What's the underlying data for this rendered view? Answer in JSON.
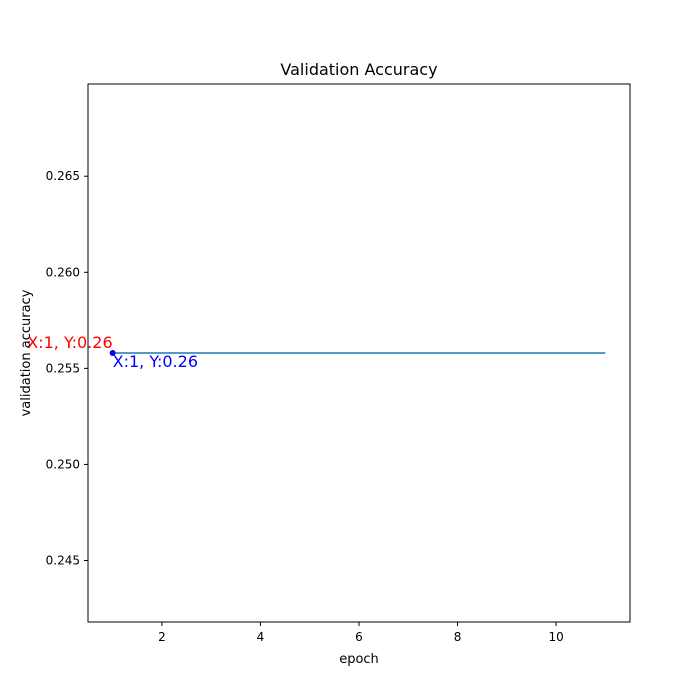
{
  "chart_data": {
    "type": "line",
    "title": "Validation Accuracy",
    "xlabel": "epoch",
    "ylabel": "validation accuracy",
    "xlim": [
      0.5,
      11.5
    ],
    "ylim": [
      0.2418,
      0.2698
    ],
    "xticks": [
      2,
      4,
      6,
      8,
      10
    ],
    "xtick_labels": [
      "2",
      "4",
      "6",
      "8",
      "10"
    ],
    "yticks": [
      0.245,
      0.25,
      0.255,
      0.26,
      0.265
    ],
    "ytick_labels": [
      "0.245",
      "0.250",
      "0.255",
      "0.260",
      "0.265"
    ],
    "grid": false,
    "series": [
      {
        "color": "#1f77b4",
        "x": [
          1,
          2,
          3,
          4,
          5,
          6,
          7,
          8,
          9,
          10,
          11
        ],
        "y": [
          0.2558,
          0.2558,
          0.2558,
          0.2558,
          0.2558,
          0.2558,
          0.2558,
          0.2558,
          0.2558,
          0.2558,
          0.2558
        ]
      }
    ],
    "highlight_point": {
      "x": 1,
      "y": 0.2558,
      "color": "#0000ff"
    },
    "annotations": [
      {
        "text": "X:1, Y:0.26",
        "color": "#ff0000",
        "x": 1,
        "y": 0.2558
      },
      {
        "text": "X:1, Y:0.26",
        "color": "#0000ff",
        "x": 1,
        "y": 0.2558
      }
    ]
  }
}
